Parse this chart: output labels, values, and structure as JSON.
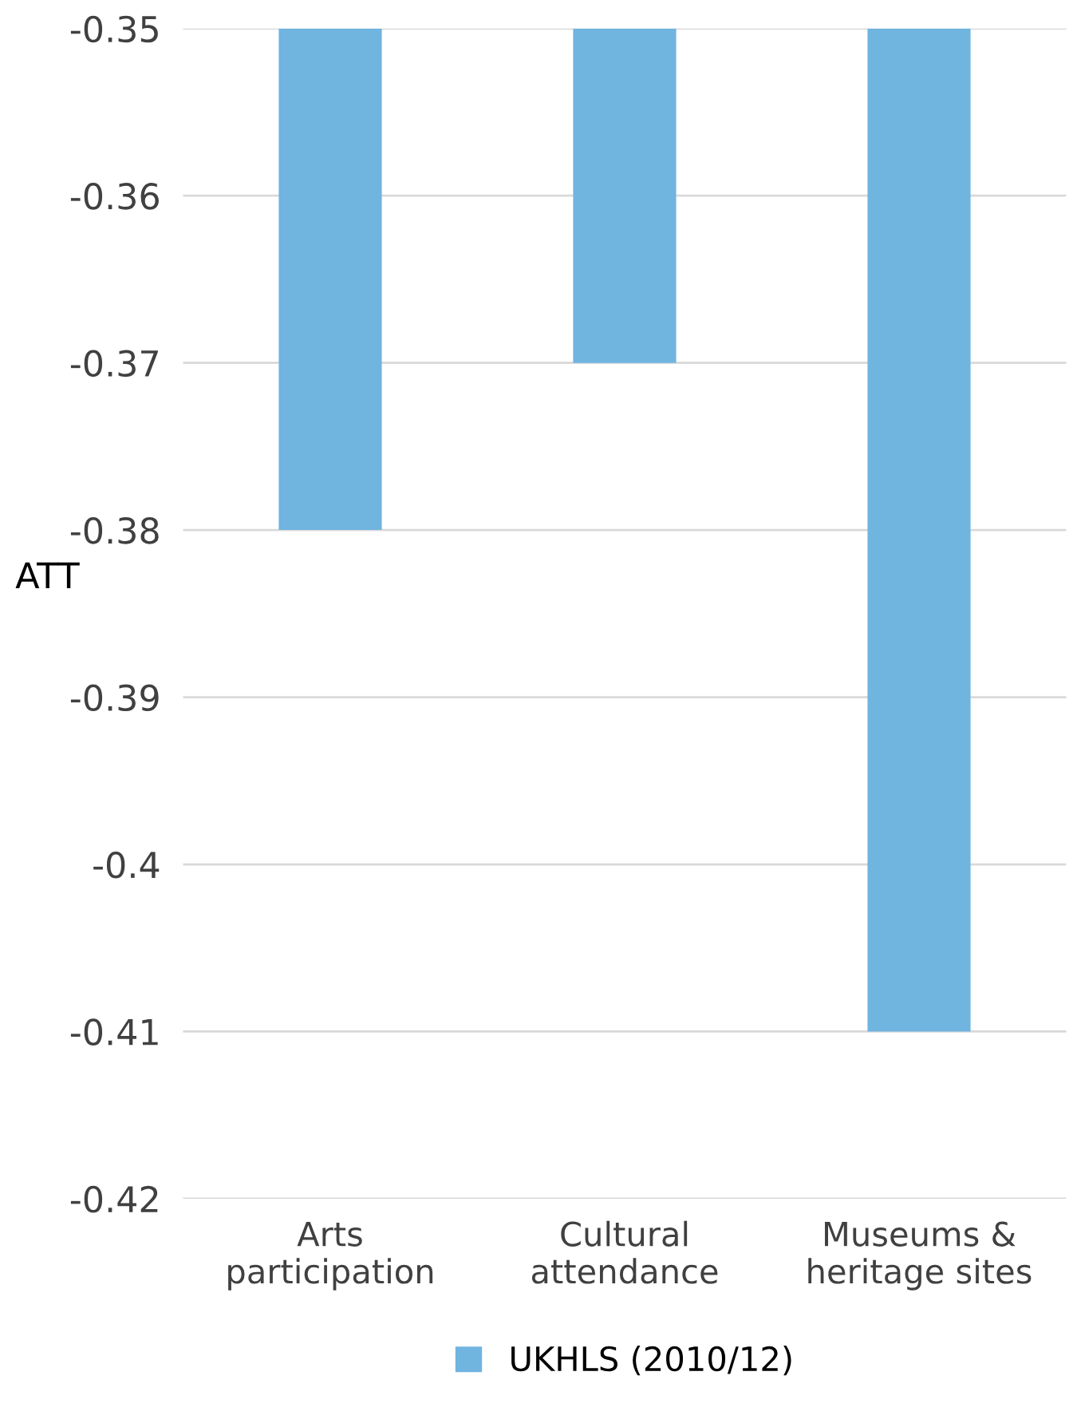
{
  "chart_data": {
    "type": "bar",
    "ylabel": "ATT",
    "categories": [
      "Arts\nparticipation",
      "Cultural\nattendance",
      "Museums &\nheritage sites"
    ],
    "series": [
      {
        "name": "UKHLS (2010/12)",
        "color": "#70b4e0",
        "values": [
          -0.38,
          -0.37,
          -0.41
        ]
      }
    ],
    "ylim": [
      -0.42,
      -0.35
    ],
    "yticks": [
      -0.42,
      -0.41,
      -0.4,
      -0.39,
      -0.38,
      -0.37,
      -0.36,
      -0.35
    ],
    "grid": "y",
    "legend": "bottom"
  }
}
